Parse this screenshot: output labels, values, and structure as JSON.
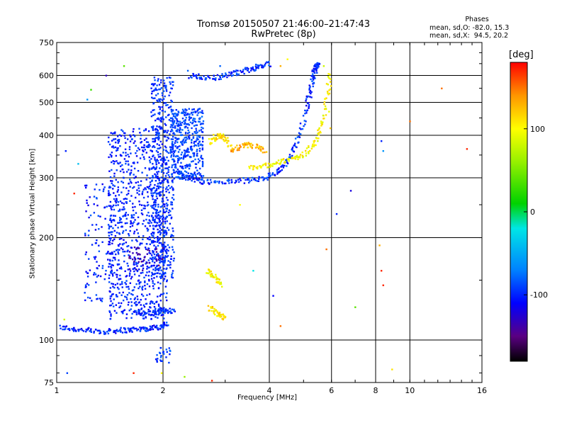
{
  "header": {
    "title_line1": "Tromsø 20150507 21:46:00–21:47:43",
    "title_line2": "RwPretec (8p)"
  },
  "legend": {
    "title": "Phases",
    "o_line": "mean, sd,O: -82.0, 15.3",
    "x_line": "mean, sd,X:  94.5, 20.2"
  },
  "colorbar": {
    "title": "[deg]",
    "min": -180,
    "max": 180,
    "ticks": [
      {
        "v": 100,
        "label": "100"
      },
      {
        "v": 0,
        "label": "0"
      },
      {
        "v": -100,
        "label": "-100"
      }
    ]
  },
  "chart_data": {
    "type": "scatter",
    "xlabel": "Frequency [MHz]",
    "ylabel": "Stationary phase Virtual Height [km]",
    "xscale": "log",
    "yscale": "log",
    "xlim": [
      1,
      16
    ],
    "ylim": [
      75,
      750
    ],
    "x_ticks": [
      1,
      2,
      4,
      6,
      8,
      10,
      16
    ],
    "y_ticks": [
      75,
      100,
      200,
      300,
      400,
      500,
      600,
      750
    ],
    "x_grid": [
      2,
      4,
      6,
      8,
      10
    ],
    "y_grid": [
      100,
      200,
      300,
      400,
      500,
      600
    ],
    "colorbar_range": [
      -180,
      180
    ],
    "traces": [
      {
        "x": [
          1.02,
          1.1,
          1.2,
          1.3,
          1.4,
          1.5,
          1.6,
          1.7,
          1.8,
          1.9,
          2.0,
          2.05
        ],
        "y": [
          109,
          108,
          107,
          106,
          106,
          107,
          107,
          108,
          108,
          109,
          110,
          112
        ],
        "phase": -100
      },
      {
        "x": [
          1.65,
          1.75,
          1.85,
          1.95,
          2.05,
          2.15
        ],
        "y": [
          120,
          120,
          120,
          121,
          122,
          122
        ],
        "phase": -95
      },
      {
        "x": [
          2.2,
          2.3,
          2.5,
          2.7,
          3.0,
          3.3,
          3.6,
          3.9,
          4.1,
          4.3,
          4.5,
          4.7,
          4.9,
          5.1
        ],
        "y": [
          310,
          300,
          295,
          292,
          292,
          294,
          296,
          300,
          307,
          318,
          335,
          365,
          410,
          480
        ],
        "phase": -95
      },
      {
        "x": [
          5.1,
          5.2,
          5.3,
          5.35,
          5.4,
          5.45,
          5.5
        ],
        "y": [
          480,
          530,
          580,
          610,
          630,
          640,
          645
        ],
        "phase": -100
      },
      {
        "x": [
          2.4,
          2.55,
          2.75,
          2.95,
          3.2,
          3.4,
          3.6,
          3.8,
          4.0
        ],
        "y": [
          600,
          595,
          590,
          598,
          610,
          620,
          630,
          640,
          650
        ],
        "phase": -95
      },
      {
        "x": [
          3.5,
          3.8,
          4.1,
          4.4,
          4.7,
          5.0,
          5.3,
          5.5,
          5.7,
          5.85,
          5.95
        ],
        "y": [
          320,
          325,
          330,
          336,
          343,
          352,
          370,
          400,
          450,
          530,
          610
        ],
        "phase": 100
      },
      {
        "x": [
          2.7,
          2.8,
          2.9,
          3.0,
          3.1
        ],
        "y": [
          380,
          395,
          400,
          390,
          370
        ],
        "phase": 110
      },
      {
        "x": [
          3.1,
          3.3,
          3.5,
          3.7,
          3.9
        ],
        "y": [
          360,
          370,
          375,
          370,
          355
        ],
        "phase": 130
      },
      {
        "x": [
          2.65,
          2.75,
          2.85,
          2.95
        ],
        "y": [
          160,
          155,
          150,
          145
        ],
        "phase": 100
      },
      {
        "x": [
          2.7,
          2.8,
          2.9,
          3.0
        ],
        "y": [
          125,
          120,
          118,
          116
        ],
        "phase": 110
      }
    ],
    "clouds": [
      {
        "xr": [
          1.4,
          2.05
        ],
        "yr": [
          115,
          420
        ],
        "n": 900,
        "phase": -100,
        "spread": 15
      },
      {
        "xr": [
          1.85,
          2.15
        ],
        "yr": [
          150,
          600
        ],
        "n": 500,
        "phase": -95,
        "spread": 12
      },
      {
        "xr": [
          2.1,
          2.6
        ],
        "yr": [
          300,
          480
        ],
        "n": 400,
        "phase": -90,
        "spread": 15
      },
      {
        "xr": [
          1.2,
          1.45
        ],
        "yr": [
          130,
          290
        ],
        "n": 120,
        "phase": -100,
        "spread": 20
      },
      {
        "xr": [
          1.9,
          2.1
        ],
        "yr": [
          85,
          95
        ],
        "n": 25,
        "phase": -90,
        "spread": 15
      },
      {
        "xr": [
          1.6,
          2.0
        ],
        "yr": [
          160,
          190
        ],
        "n": 40,
        "phase": -140,
        "spread": 10
      }
    ],
    "scatter": [
      {
        "x": 1.06,
        "y": 360,
        "phase": -100
      },
      {
        "x": 1.22,
        "y": 510,
        "phase": -60
      },
      {
        "x": 1.25,
        "y": 545,
        "phase": 30
      },
      {
        "x": 1.38,
        "y": 600,
        "phase": -130
      },
      {
        "x": 1.55,
        "y": 640,
        "phase": 40
      },
      {
        "x": 1.12,
        "y": 270,
        "phase": 170
      },
      {
        "x": 1.15,
        "y": 330,
        "phase": -40
      },
      {
        "x": 1.05,
        "y": 115,
        "phase": 80
      },
      {
        "x": 1.07,
        "y": 80,
        "phase": -90
      },
      {
        "x": 1.65,
        "y": 80,
        "phase": 170
      },
      {
        "x": 1.98,
        "y": 80,
        "phase": 100
      },
      {
        "x": 2.3,
        "y": 78,
        "phase": 60
      },
      {
        "x": 2.75,
        "y": 76,
        "phase": 170
      },
      {
        "x": 2.35,
        "y": 620,
        "phase": -80
      },
      {
        "x": 3.3,
        "y": 250,
        "phase": 100
      },
      {
        "x": 3.6,
        "y": 160,
        "phase": -20
      },
      {
        "x": 4.3,
        "y": 110,
        "phase": 150
      },
      {
        "x": 4.1,
        "y": 135,
        "phase": -110
      },
      {
        "x": 5.8,
        "y": 185,
        "phase": 150
      },
      {
        "x": 6.2,
        "y": 235,
        "phase": -100
      },
      {
        "x": 6.8,
        "y": 275,
        "phase": -120
      },
      {
        "x": 7.0,
        "y": 125,
        "phase": 40
      },
      {
        "x": 8.2,
        "y": 190,
        "phase": 130
      },
      {
        "x": 8.3,
        "y": 160,
        "phase": 170
      },
      {
        "x": 8.4,
        "y": 145,
        "phase": 170
      },
      {
        "x": 8.3,
        "y": 385,
        "phase": -100
      },
      {
        "x": 8.4,
        "y": 360,
        "phase": -60
      },
      {
        "x": 8.9,
        "y": 82,
        "phase": 110
      },
      {
        "x": 10.0,
        "y": 440,
        "phase": 150
      },
      {
        "x": 12.3,
        "y": 550,
        "phase": 150
      },
      {
        "x": 14.5,
        "y": 365,
        "phase": 170
      },
      {
        "x": 5.9,
        "y": 470,
        "phase": 90
      },
      {
        "x": 5.95,
        "y": 420,
        "phase": 120
      },
      {
        "x": 5.7,
        "y": 640,
        "phase": 80
      },
      {
        "x": 4.5,
        "y": 670,
        "phase": 100
      },
      {
        "x": 4.3,
        "y": 640,
        "phase": 130
      },
      {
        "x": 2.9,
        "y": 640,
        "phase": -80
      }
    ]
  }
}
